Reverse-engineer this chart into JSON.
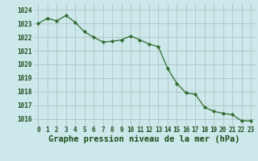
{
  "x": [
    0,
    1,
    2,
    3,
    4,
    5,
    6,
    7,
    8,
    9,
    10,
    11,
    12,
    13,
    14,
    15,
    16,
    17,
    18,
    19,
    20,
    21,
    22,
    23
  ],
  "y": [
    1023.0,
    1023.4,
    1023.2,
    1023.6,
    1023.1,
    1022.4,
    1022.0,
    1021.65,
    1021.7,
    1021.8,
    1022.1,
    1021.8,
    1021.5,
    1021.3,
    1019.7,
    1018.6,
    1017.9,
    1017.8,
    1016.85,
    1016.55,
    1016.4,
    1016.3,
    1015.85,
    1015.85
  ],
  "line_color": "#2d6b2d",
  "marker_color": "#2d6b2d",
  "bg_color": "#cce8ea",
  "grid_color": "#aabcbe",
  "xlabel": "Graphe pression niveau de la mer (hPa)",
  "xlabel_color": "#1a4d1a",
  "ylim": [
    1015.5,
    1024.5
  ],
  "yticks": [
    1016,
    1017,
    1018,
    1019,
    1020,
    1021,
    1022,
    1023,
    1024
  ],
  "xticks": [
    0,
    1,
    2,
    3,
    4,
    5,
    6,
    7,
    8,
    9,
    10,
    11,
    12,
    13,
    14,
    15,
    16,
    17,
    18,
    19,
    20,
    21,
    22,
    23
  ],
  "tick_color": "#1a4d1a",
  "tick_fontsize": 5.5,
  "xlabel_fontsize": 7.5
}
